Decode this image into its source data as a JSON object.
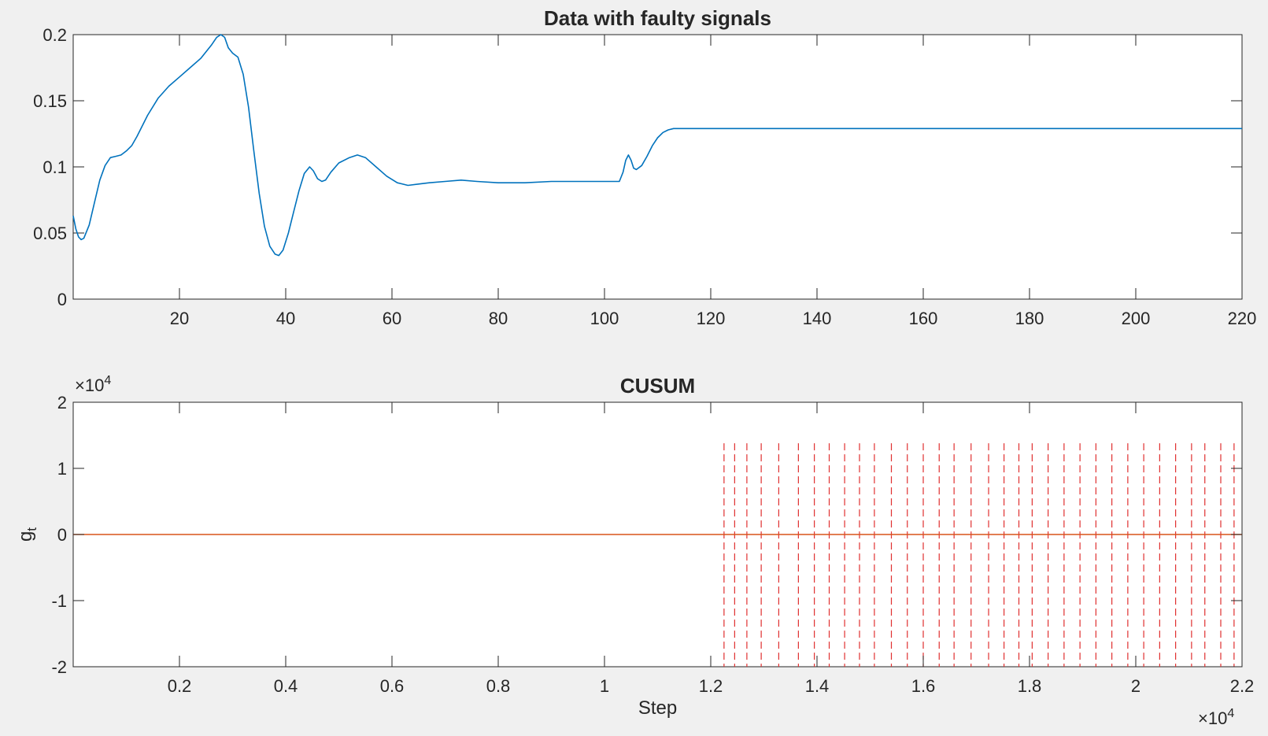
{
  "chart_data": [
    {
      "type": "line",
      "title": "Data with faulty signals",
      "xlabel": "",
      "ylabel": "",
      "xlim": [
        0,
        220
      ],
      "ylim": [
        0,
        0.2
      ],
      "xticks": [
        20,
        40,
        60,
        80,
        100,
        120,
        140,
        160,
        180,
        200,
        220
      ],
      "xtick_labels": [
        "20",
        "40",
        "60",
        "80",
        "100",
        "120",
        "140",
        "160",
        "180",
        "200",
        "220"
      ],
      "yticks": [
        0,
        0.05,
        0.1,
        0.15,
        0.2
      ],
      "ytick_labels": [
        "0",
        "0.05",
        "0.1",
        "0.15",
        "0.2"
      ],
      "grid": false,
      "colors": {
        "line": "#0072bd"
      },
      "series": [
        {
          "x": [
            0,
            0.5,
            1,
            1.5,
            2,
            3,
            4,
            5,
            6,
            7,
            8,
            9,
            10,
            11,
            12,
            14,
            16,
            18,
            20,
            22,
            24,
            26,
            27,
            27.8,
            28.5,
            29.2,
            30,
            31,
            32,
            33,
            34,
            35,
            36,
            37,
            38,
            38.7,
            39.5,
            40.5,
            41.5,
            42.5,
            43.5,
            44.5,
            45.2,
            46,
            46.8,
            47.5,
            48.5,
            50,
            52,
            53.5,
            55,
            57,
            59,
            61,
            63,
            65,
            67,
            70,
            73,
            76,
            80,
            85,
            90,
            95,
            100,
            102.8,
            103.5,
            104,
            104.5,
            105,
            105.5,
            106,
            107,
            108,
            109,
            110,
            111,
            112,
            113,
            114,
            116,
            120,
            140,
            160,
            180,
            200,
            220
          ],
          "y": [
            0.063,
            0.053,
            0.047,
            0.045,
            0.046,
            0.056,
            0.073,
            0.09,
            0.101,
            0.107,
            0.108,
            0.109,
            0.112,
            0.116,
            0.123,
            0.139,
            0.152,
            0.161,
            0.168,
            0.175,
            0.182,
            0.192,
            0.198,
            0.2,
            0.198,
            0.19,
            0.186,
            0.183,
            0.17,
            0.145,
            0.112,
            0.08,
            0.055,
            0.04,
            0.034,
            0.033,
            0.037,
            0.05,
            0.066,
            0.082,
            0.095,
            0.1,
            0.097,
            0.091,
            0.089,
            0.09,
            0.096,
            0.103,
            0.107,
            0.109,
            0.107,
            0.1,
            0.093,
            0.088,
            0.086,
            0.087,
            0.088,
            0.089,
            0.09,
            0.089,
            0.088,
            0.088,
            0.089,
            0.089,
            0.089,
            0.089,
            0.096,
            0.105,
            0.109,
            0.105,
            0.099,
            0.098,
            0.101,
            0.108,
            0.116,
            0.122,
            0.126,
            0.128,
            0.129,
            0.129,
            0.129,
            0.129,
            0.129,
            0.129,
            0.129,
            0.129,
            0.129
          ]
        }
      ]
    },
    {
      "type": "line",
      "title": "CUSUM",
      "xlabel": "Step",
      "ylabel": "g",
      "ylabel_subscript": "t",
      "xlim": [
        0,
        22000
      ],
      "ylim": [
        -20000,
        20000
      ],
      "x_exponent": "×10",
      "x_exponent_power": "4",
      "y_exponent": "×10",
      "y_exponent_power": "4",
      "xticks": [
        2000,
        4000,
        6000,
        8000,
        10000,
        12000,
        14000,
        16000,
        18000,
        20000,
        22000
      ],
      "xtick_labels": [
        "0.2",
        "0.4",
        "0.6",
        "0.8",
        "1",
        "1.2",
        "1.4",
        "1.6",
        "1.8",
        "2",
        "2.2"
      ],
      "yticks": [
        -20000,
        -10000,
        0,
        10000,
        20000
      ],
      "ytick_labels": [
        "-2",
        "-1",
        "0",
        "1",
        "2"
      ],
      "grid": false,
      "colors": {
        "line": "#d95319",
        "markers": "#e03030"
      },
      "series": [
        {
          "x": [
            0,
            22000
          ],
          "y": [
            0,
            0
          ]
        }
      ],
      "vlines": {
        "style": "dashed",
        "ymax": 13800,
        "x": [
          12250,
          12450,
          12680,
          12950,
          13280,
          13650,
          13950,
          14230,
          14520,
          14800,
          15080,
          15400,
          15700,
          16000,
          16300,
          16580,
          16900,
          17230,
          17520,
          17800,
          18050,
          18350,
          18650,
          18950,
          19250,
          19550,
          19850,
          20150,
          20450,
          20750,
          21050,
          21300,
          21600,
          21850
        ]
      }
    }
  ]
}
